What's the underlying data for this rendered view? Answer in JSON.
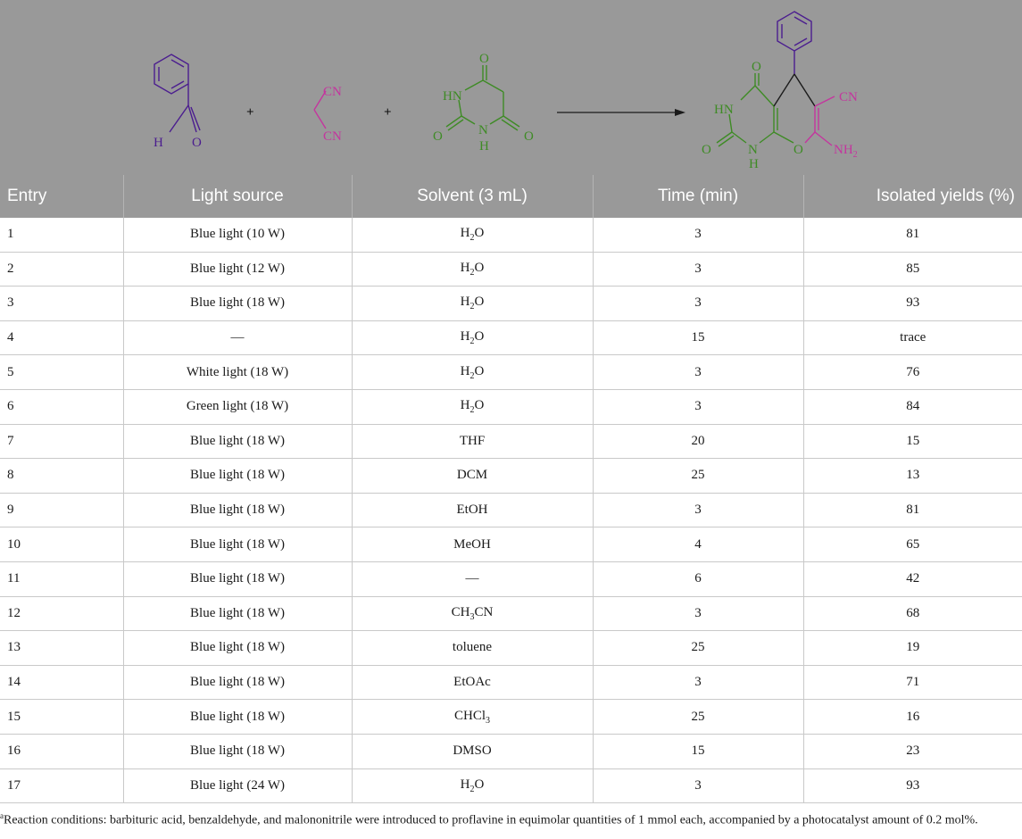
{
  "scheme": {
    "plus": "+",
    "aldehyde": {
      "h": "H",
      "o": "O"
    },
    "malononitrile": {
      "cn_top": "CN",
      "cn_bottom": "CN"
    },
    "barbituric": {
      "o_top": "O",
      "hn": "HN",
      "o_left": "O",
      "n": "N",
      "h": "H",
      "o_right": "O"
    },
    "product": {
      "o_top": "O",
      "hn": "HN",
      "cn": "CN",
      "o_left": "O",
      "n": "N",
      "h": "H",
      "o_ring": "O",
      "nh2_base": "NH",
      "nh2_sub": "2"
    },
    "colors": {
      "aldehyde": "#4b1d8f",
      "malononitrile": "#c4359e",
      "barbituric": "#3e8b25",
      "arrow": "#1a1a1a"
    }
  },
  "table": {
    "headers": [
      "Entry",
      "Light source",
      "Solvent (3 mL)",
      "Time (min)",
      "Isolated yields (%)"
    ],
    "rows": [
      {
        "entry": "1",
        "light": "Blue light (10 W)",
        "solvent": {
          "text": "H",
          "sub": "2",
          "post": "O"
        },
        "time": "3",
        "yield": "81"
      },
      {
        "entry": "2",
        "light": "Blue light (12 W)",
        "solvent": {
          "text": "H",
          "sub": "2",
          "post": "O"
        },
        "time": "3",
        "yield": "85"
      },
      {
        "entry": "3",
        "light": "Blue light (18 W)",
        "solvent": {
          "text": "H",
          "sub": "2",
          "post": "O"
        },
        "time": "3",
        "yield": "93"
      },
      {
        "entry": "4",
        "light": "—",
        "solvent": {
          "text": "H",
          "sub": "2",
          "post": "O"
        },
        "time": "15",
        "yield": "trace"
      },
      {
        "entry": "5",
        "light": "White light (18 W)",
        "solvent": {
          "text": "H",
          "sub": "2",
          "post": "O"
        },
        "time": "3",
        "yield": "76"
      },
      {
        "entry": "6",
        "light": "Green light (18 W)",
        "solvent": {
          "text": "H",
          "sub": "2",
          "post": "O"
        },
        "time": "3",
        "yield": "84"
      },
      {
        "entry": "7",
        "light": "Blue light (18 W)",
        "solvent": {
          "text": "THF"
        },
        "time": "20",
        "yield": "15"
      },
      {
        "entry": "8",
        "light": "Blue light (18 W)",
        "solvent": {
          "text": "DCM"
        },
        "time": "25",
        "yield": "13"
      },
      {
        "entry": "9",
        "light": "Blue light (18 W)",
        "solvent": {
          "text": "EtOH"
        },
        "time": "3",
        "yield": "81"
      },
      {
        "entry": "10",
        "light": "Blue light (18 W)",
        "solvent": {
          "text": "MeOH"
        },
        "time": "4",
        "yield": "65"
      },
      {
        "entry": "11",
        "light": "Blue light (18 W)",
        "solvent": {
          "text": "—"
        },
        "time": "6",
        "yield": "42"
      },
      {
        "entry": "12",
        "light": "Blue light (18 W)",
        "solvent": {
          "text": "CH",
          "sub": "3",
          "post": "CN"
        },
        "time": "3",
        "yield": "68"
      },
      {
        "entry": "13",
        "light": "Blue light (18 W)",
        "solvent": {
          "text": "toluene"
        },
        "time": "25",
        "yield": "19"
      },
      {
        "entry": "14",
        "light": "Blue light (18 W)",
        "solvent": {
          "text": "EtOAc"
        },
        "time": "3",
        "yield": "71"
      },
      {
        "entry": "15",
        "light": "Blue light (18 W)",
        "solvent": {
          "text": "CHCl",
          "sub": "3",
          "post": ""
        },
        "time": "25",
        "yield": "16"
      },
      {
        "entry": "16",
        "light": "Blue light (18 W)",
        "solvent": {
          "text": "DMSO"
        },
        "time": "15",
        "yield": "23"
      },
      {
        "entry": "17",
        "light": "Blue light (24 W)",
        "solvent": {
          "text": "H",
          "sub": "2",
          "post": "O"
        },
        "time": "3",
        "yield": "93"
      }
    ]
  },
  "footnote": {
    "marker": "a",
    "text": "Reaction conditions: barbituric acid, benzaldehyde, and malononitrile were introduced to proflavine in equimolar quantities of 1 mmol each, accompanied by a photocatalyst amount of 0.2 mol%."
  }
}
